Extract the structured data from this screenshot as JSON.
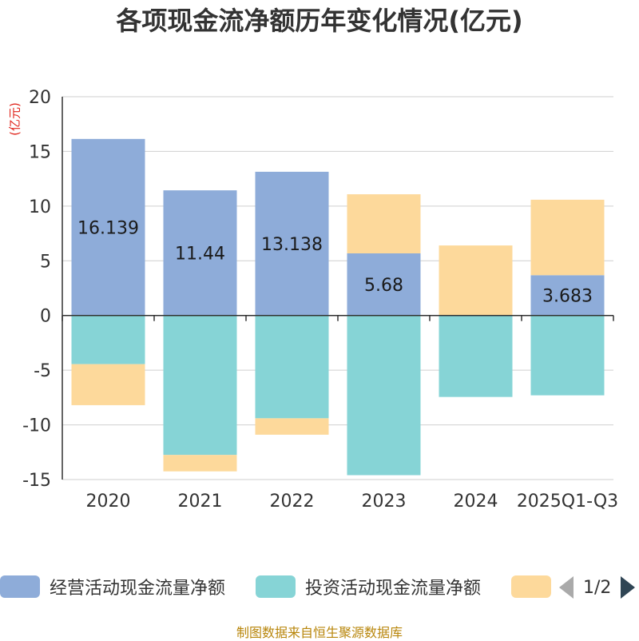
{
  "chart_data": {
    "type": "bar",
    "stacked": true,
    "title": "各项现金流净额历年变化情况(亿元)",
    "ylabel": "(亿元)",
    "ylim": [
      -15,
      20
    ],
    "yticks": [
      20,
      15,
      10,
      5,
      0,
      -5,
      -10,
      -15
    ],
    "grid": true,
    "categories": [
      "2020",
      "2021",
      "2022",
      "2023",
      "2024",
      "2025Q1-Q3"
    ],
    "series": [
      {
        "name": "经营活动现金流量净额",
        "color": "#8eacd9",
        "values": [
          16.139,
          11.44,
          13.138,
          5.68,
          -0.05,
          3.683
        ],
        "labels": [
          "16.139",
          "11.44",
          "13.138",
          "5.68",
          "",
          "3.683"
        ]
      },
      {
        "name": "投资活动现金流量净额",
        "color": "#86d4d6",
        "values": [
          -4.45,
          -12.75,
          -9.4,
          -14.6,
          -7.4,
          -7.3
        ]
      },
      {
        "name": "",
        "color": "#fdd99b",
        "values": [
          -3.75,
          -1.5,
          -1.5,
          5.4,
          6.4,
          6.9
        ]
      }
    ],
    "legend_position": "bottom"
  },
  "legend": {
    "items": [
      {
        "label": "经营活动现金流量净额",
        "color": "#8eacd9"
      },
      {
        "label": "投资活动现金流量净额",
        "color": "#86d4d6"
      },
      {
        "label": "",
        "color": "#fdd99b"
      }
    ],
    "pager": "1/2"
  },
  "source": "制图数据来自恒生聚源数据库"
}
